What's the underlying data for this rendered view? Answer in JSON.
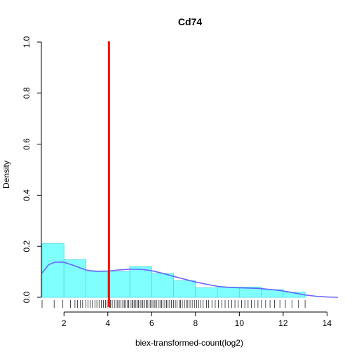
{
  "chart_data": {
    "type": "histogram",
    "title": "Cd74",
    "xlabel": "biex-transformed-count(log2)",
    "ylabel": "Density",
    "xlim": [
      1,
      14.5
    ],
    "ylim": [
      0,
      1.0
    ],
    "x_ticks": [
      2,
      4,
      6,
      8,
      10,
      12,
      14
    ],
    "y_ticks": [
      0.0,
      0.2,
      0.4,
      0.6,
      0.8,
      1.0
    ],
    "x_tick_labels": [
      "2",
      "4",
      "6",
      "8",
      "10",
      "12",
      "14"
    ],
    "y_tick_labels": [
      "0.0",
      "0.2",
      "0.4",
      "0.6",
      "0.8",
      "1.0"
    ],
    "bins": [
      {
        "x0": 1,
        "x1": 2,
        "density": 0.21
      },
      {
        "x0": 2,
        "x1": 3,
        "density": 0.147
      },
      {
        "x0": 3,
        "x1": 4,
        "density": 0.1
      },
      {
        "x0": 4,
        "x1": 5,
        "density": 0.1
      },
      {
        "x0": 5,
        "x1": 6,
        "density": 0.12
      },
      {
        "x0": 6,
        "x1": 7,
        "density": 0.093
      },
      {
        "x0": 7,
        "x1": 8,
        "density": 0.065
      },
      {
        "x0": 8,
        "x1": 9,
        "density": 0.037
      },
      {
        "x0": 9,
        "x1": 10,
        "density": 0.04
      },
      {
        "x0": 10,
        "x1": 11,
        "density": 0.04
      },
      {
        "x0": 11,
        "x1": 12,
        "density": 0.03
      },
      {
        "x0": 12,
        "x1": 13,
        "density": 0.02
      }
    ],
    "density_curve": {
      "x": [
        1.0,
        1.3,
        1.6,
        2.0,
        2.5,
        3.0,
        3.5,
        4.0,
        4.5,
        5.0,
        5.5,
        6.0,
        6.5,
        7.0,
        7.5,
        8.0,
        8.5,
        9.0,
        9.5,
        10.0,
        10.5,
        11.0,
        11.5,
        12.0,
        12.5,
        13.0,
        13.5,
        14.0,
        14.5
      ],
      "y": [
        0.095,
        0.128,
        0.138,
        0.137,
        0.123,
        0.107,
        0.102,
        0.103,
        0.107,
        0.11,
        0.11,
        0.104,
        0.094,
        0.082,
        0.071,
        0.06,
        0.051,
        0.043,
        0.039,
        0.037,
        0.036,
        0.034,
        0.03,
        0.025,
        0.017,
        0.009,
        0.004,
        0.001,
        0.0
      ]
    },
    "vline": {
      "x": 4.05,
      "color": "#ff0000"
    },
    "rug": [
      1.0,
      1.55,
      1.95,
      2.3,
      2.5,
      2.62,
      2.75,
      2.85,
      3.0,
      3.1,
      3.2,
      3.3,
      3.42,
      3.5,
      3.6,
      3.7,
      3.8,
      3.9,
      3.97,
      4.08,
      4.12,
      4.2,
      4.3,
      4.38,
      4.45,
      4.52,
      4.6,
      4.68,
      4.75,
      4.82,
      4.9,
      4.95,
      5.02,
      5.1,
      5.15,
      5.2,
      5.28,
      5.35,
      5.4,
      5.48,
      5.55,
      5.6,
      5.68,
      5.75,
      5.8,
      5.88,
      5.95,
      6.02,
      6.1,
      6.15,
      6.22,
      6.3,
      6.38,
      6.45,
      6.52,
      6.6,
      6.68,
      6.75,
      6.82,
      6.9,
      7.0,
      7.08,
      7.15,
      7.25,
      7.32,
      7.4,
      7.5,
      7.58,
      7.65,
      7.75,
      7.85,
      7.95,
      8.05,
      8.15,
      8.25,
      8.35,
      8.5,
      8.6,
      8.75,
      8.9,
      9.05,
      9.2,
      9.35,
      9.5,
      9.65,
      9.8,
      9.95,
      10.1,
      10.25,
      10.4,
      10.55,
      10.7,
      10.85,
      11.0,
      11.2,
      11.4,
      11.6,
      11.85,
      12.1,
      12.4,
      12.7,
      13.0
    ],
    "colors": {
      "bar_fill": "#80ffff",
      "bar_stroke": "#55e0e0",
      "density_line": "#6666ff",
      "vline": "#ff0000",
      "rug": "#000000"
    }
  }
}
